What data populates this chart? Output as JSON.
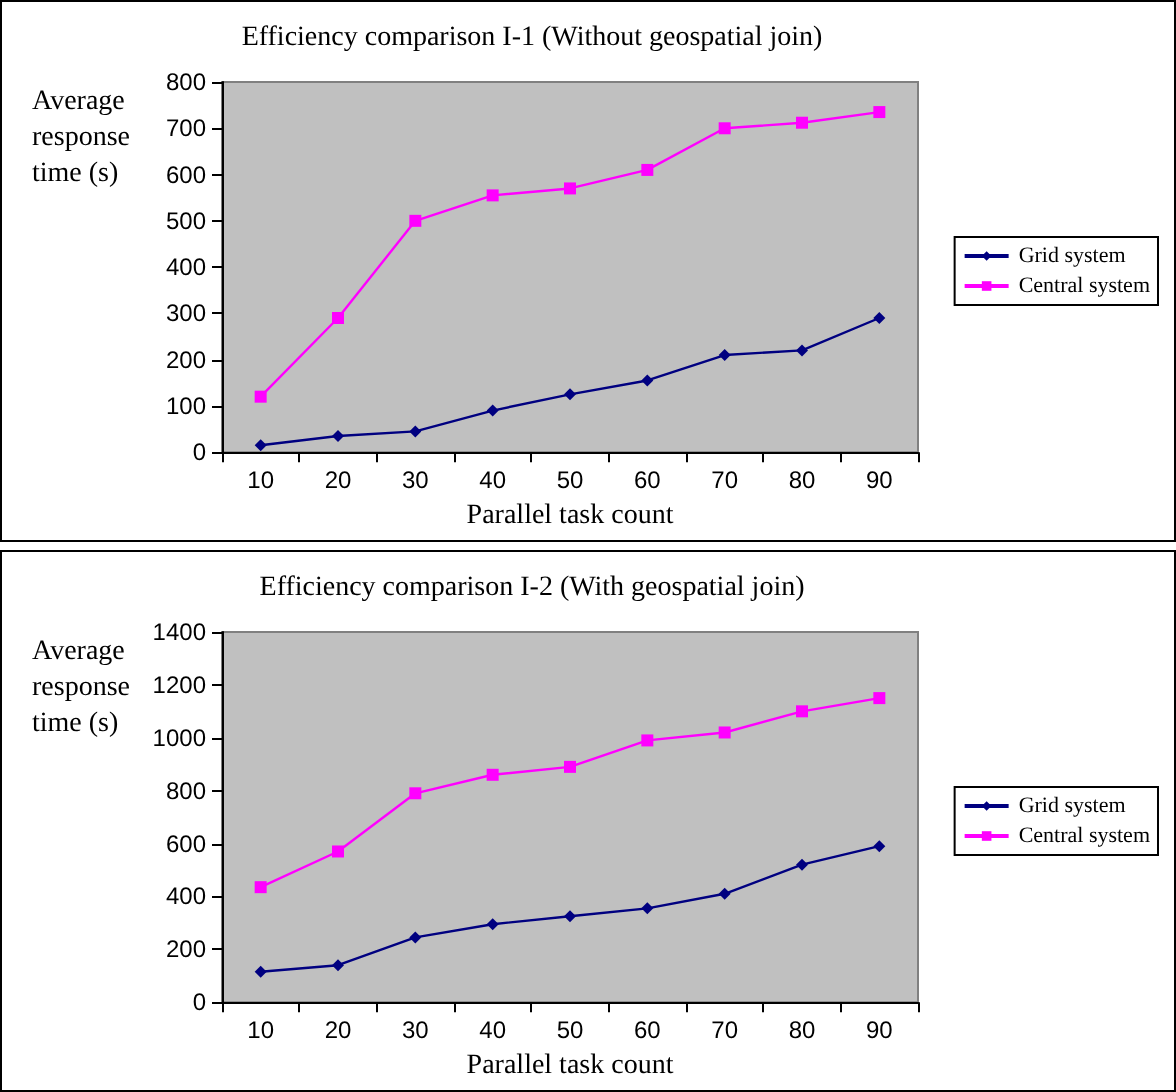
{
  "chart_data": [
    {
      "type": "line",
      "title": "Efficiency comparison I-1 (Without geospatial join)",
      "xlabel": "Parallel task count",
      "ylabel": "Average response time (s)",
      "categories": [
        "10",
        "20",
        "30",
        "40",
        "50",
        "60",
        "70",
        "80",
        "90"
      ],
      "series": [
        {
          "name": "Grid system",
          "color": "#000080",
          "marker": "diamond",
          "values": [
            15,
            35,
            45,
            90,
            125,
            155,
            210,
            220,
            290
          ]
        },
        {
          "name": "Central system",
          "color": "#ff00ff",
          "marker": "square",
          "values": [
            120,
            290,
            500,
            555,
            570,
            610,
            700,
            712,
            735
          ]
        }
      ],
      "ylim": [
        0,
        800
      ],
      "yticks": [
        0,
        100,
        200,
        300,
        400,
        500,
        600,
        700,
        800
      ],
      "grid": false,
      "legend": "right",
      "line_style": "solid"
    },
    {
      "type": "line",
      "title": "Efficiency comparison I-2 (With geospatial join)",
      "xlabel": "Parallel task count",
      "ylabel": "Average response time (s)",
      "categories": [
        "10",
        "20",
        "30",
        "40",
        "50",
        "60",
        "70",
        "80",
        "90"
      ],
      "series": [
        {
          "name": "Grid system",
          "color": "#000080",
          "marker": "diamond",
          "values": [
            115,
            140,
            245,
            295,
            325,
            355,
            410,
            520,
            590
          ]
        },
        {
          "name": "Central system",
          "color": "#ff00ff",
          "marker": "square",
          "values": [
            435,
            570,
            790,
            860,
            890,
            990,
            1020,
            1100,
            1150
          ]
        }
      ],
      "ylim": [
        0,
        1400
      ],
      "yticks": [
        0,
        200,
        400,
        600,
        800,
        1000,
        1200,
        1400
      ],
      "grid": false,
      "legend": "right",
      "line_style": "solid"
    }
  ]
}
